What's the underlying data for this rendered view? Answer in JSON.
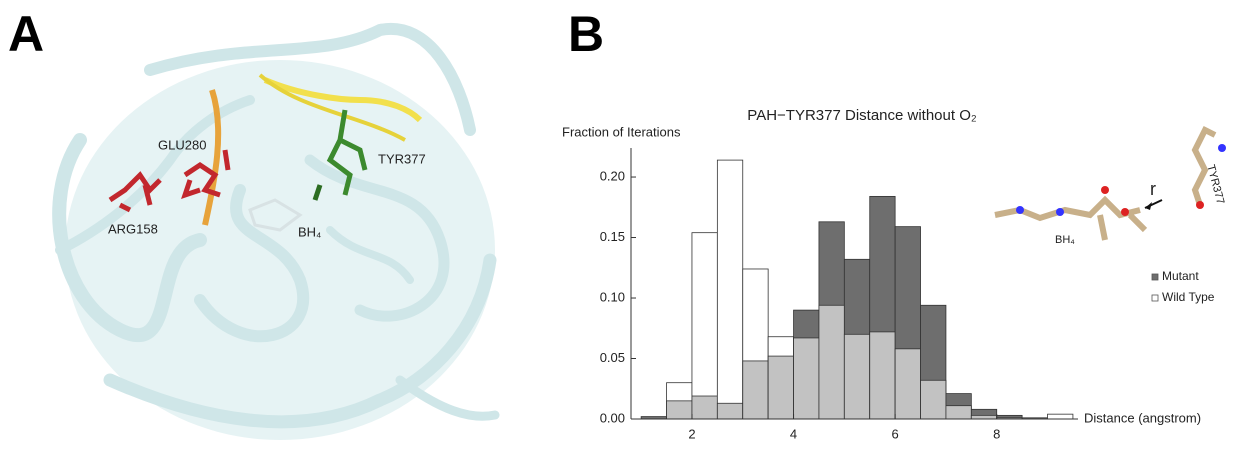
{
  "panels": {
    "a": "A",
    "b": "B"
  },
  "structure": {
    "labels": [
      "GLU280",
      "TYR377",
      "ARG158",
      "BH₄"
    ]
  },
  "inset": {
    "labels": [
      "r",
      "TYR377",
      "BH₄"
    ]
  },
  "chart_data": {
    "type": "histogram",
    "title": "PAH−TYR377 Distance without O₂",
    "y_label": "Fraction of Iterations",
    "x_label": "Distance (angstrom)",
    "bins": [
      1.0,
      1.5,
      2.0,
      2.5,
      3.0,
      3.5,
      4.0,
      4.5,
      5.0,
      5.5,
      6.0,
      6.5,
      7.0,
      7.5,
      8.0,
      8.5,
      9.0,
      9.5
    ],
    "series": [
      {
        "name": "Mutant",
        "color": "#6e6e6e",
        "values": [
          0.002,
          0.015,
          0.019,
          0.013,
          0.048,
          0.052,
          0.09,
          0.163,
          0.132,
          0.184,
          0.159,
          0.094,
          0.021,
          0.008,
          0.003,
          0.001,
          0
        ]
      },
      {
        "name": "Wild Type",
        "color": "#ffffff",
        "values": [
          0,
          0.03,
          0.154,
          0.214,
          0.124,
          0.068,
          0.067,
          0.094,
          0.07,
          0.072,
          0.058,
          0.032,
          0.011,
          0.003,
          0.001,
          0,
          0.004
        ]
      }
    ],
    "overlap_color": "#c2c2c2",
    "xlim": [
      0.8,
      9.6
    ],
    "xticks": [
      2,
      4,
      6,
      8
    ],
    "ylim": [
      0,
      0.224
    ],
    "yticks": [
      {
        "value": 0,
        "label": "0.00"
      },
      0.05,
      {
        "value": 0.1,
        "label": "0.10"
      },
      0.15,
      {
        "value": 0.2,
        "label": "0.20"
      }
    ]
  }
}
